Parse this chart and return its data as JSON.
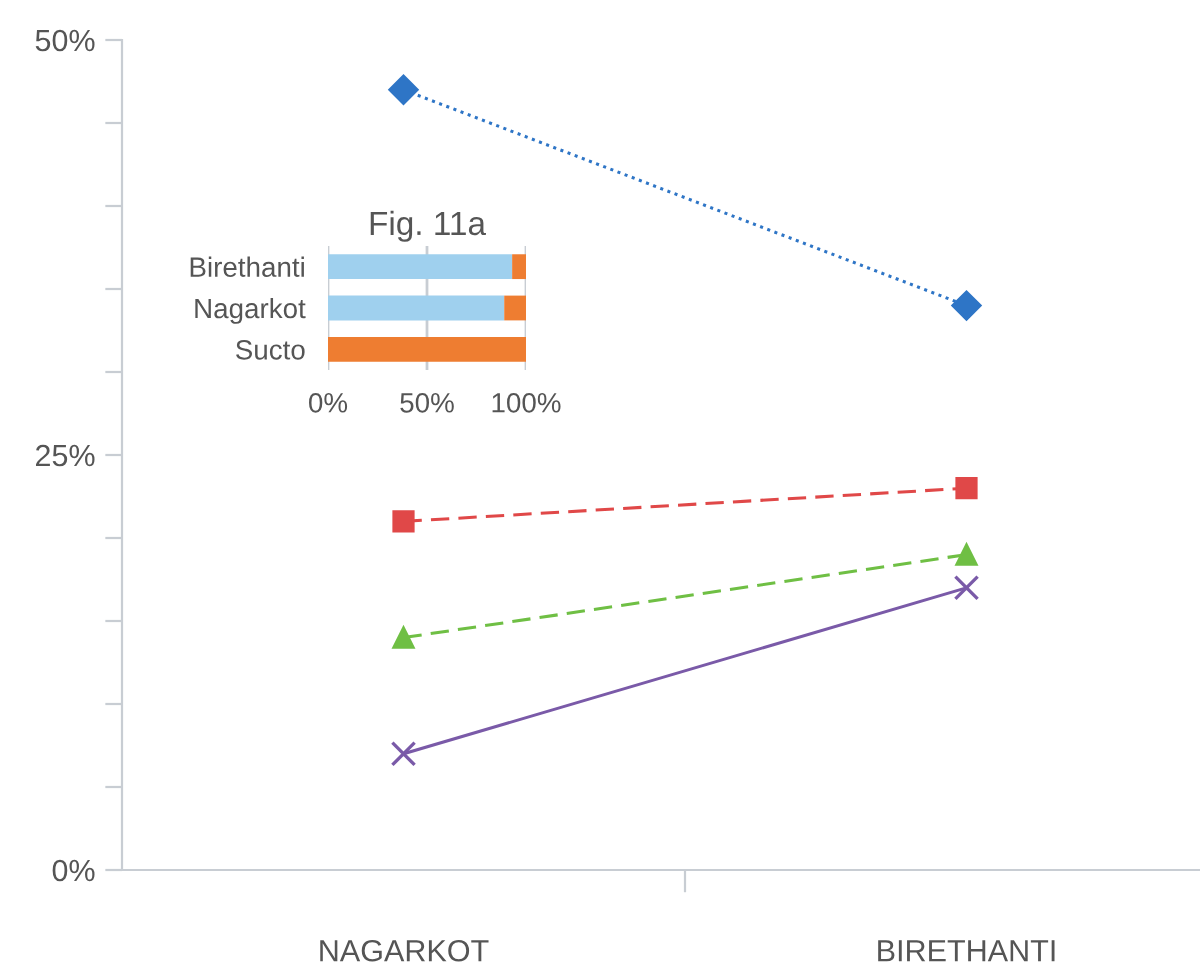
{
  "chart_data": [
    {
      "type": "line",
      "categories": [
        "NAGARKOT",
        "BIRETHANTI"
      ],
      "ylim": [
        0,
        50
      ],
      "yticks": [
        {
          "value": 0,
          "label": "0%"
        },
        {
          "value": 5,
          "label": null
        },
        {
          "value": 10,
          "label": null
        },
        {
          "value": 15,
          "label": null
        },
        {
          "value": 20,
          "label": null
        },
        {
          "value": 25,
          "label": "25%"
        },
        {
          "value": 30,
          "label": null
        },
        {
          "value": 35,
          "label": null
        },
        {
          "value": 40,
          "label": null
        },
        {
          "value": 45,
          "label": null
        },
        {
          "value": 50,
          "label": "50%"
        }
      ],
      "legend": false,
      "series": [
        {
          "color": "#2e75c6",
          "values": [
            47,
            34
          ],
          "marker": "diamond",
          "line_style": "dotted"
        },
        {
          "color": "#e04848",
          "values": [
            21,
            23
          ],
          "marker": "square",
          "line_style": "dashed"
        },
        {
          "color": "#6fbf44",
          "values": [
            14,
            19
          ],
          "marker": "triangle",
          "line_style": "dashed"
        },
        {
          "color": "#7a5aa8",
          "values": [
            7,
            17
          ],
          "marker": "cross",
          "line_style": "solid"
        }
      ]
    },
    {
      "type": "bar",
      "orientation": "horizontal",
      "stacked": true,
      "title": "Fig. 11a",
      "categories": [
        "Birethanti",
        "Nagarkot",
        "Sucto"
      ],
      "xlim": [
        0,
        100
      ],
      "xticks": [
        {
          "value": 0,
          "label": "0%"
        },
        {
          "value": 50,
          "label": "50%"
        },
        {
          "value": 100,
          "label": "100%"
        }
      ],
      "grid": "x",
      "legend": false,
      "series": [
        {
          "color": "#9fd0ee",
          "values": [
            93,
            89,
            0
          ]
        },
        {
          "color": "#ee7d31",
          "values": [
            7,
            11,
            100
          ]
        }
      ]
    }
  ]
}
